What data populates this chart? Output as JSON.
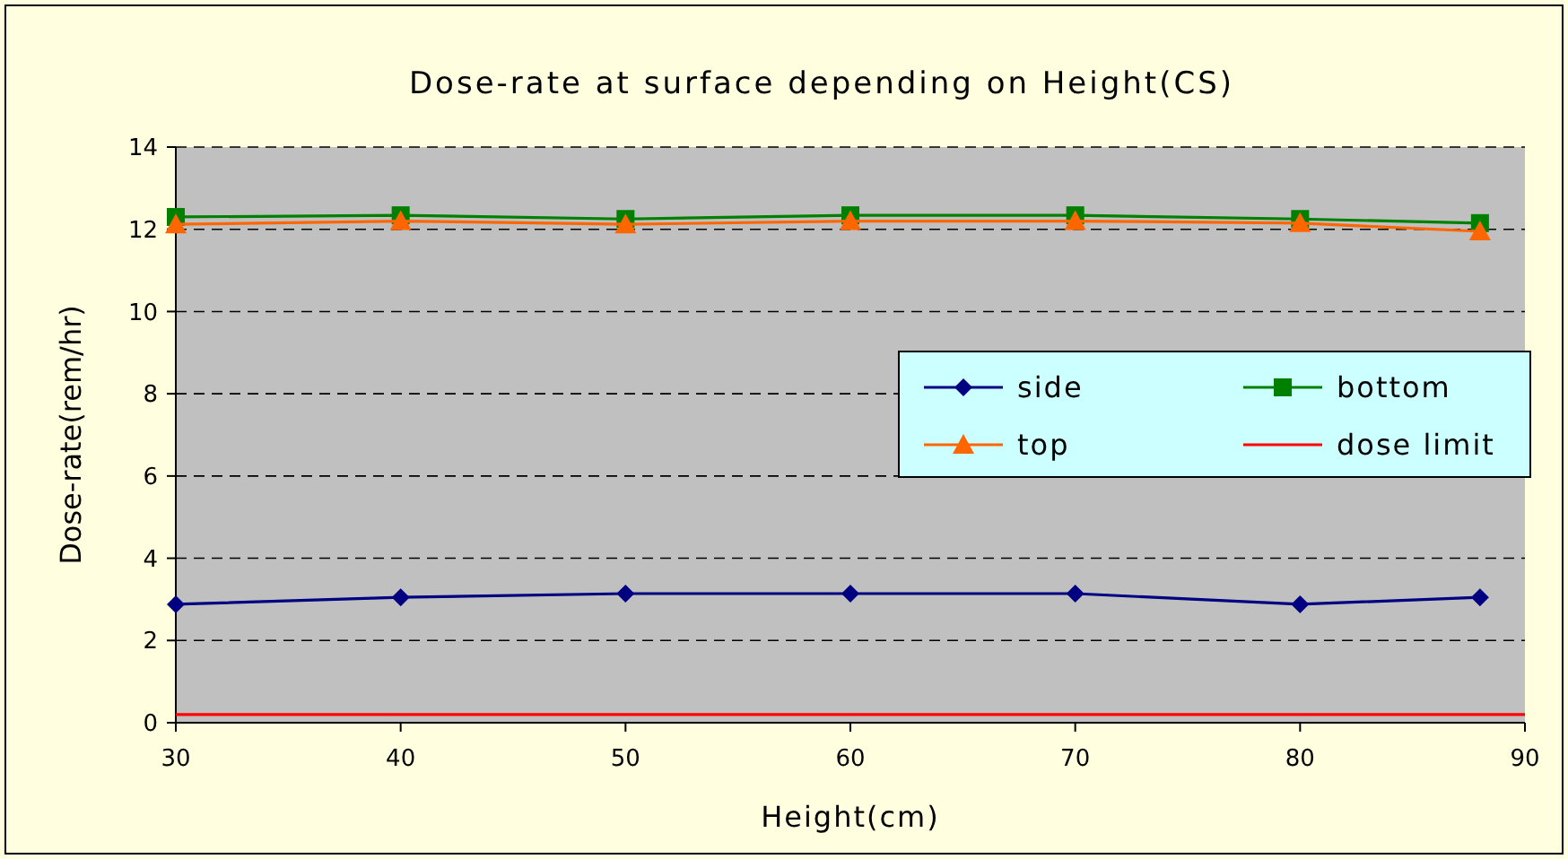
{
  "chart_data": {
    "type": "line",
    "title": "Dose-rate at surface depending on Height(CS)",
    "xlabel": "Height(cm)",
    "ylabel": "Dose-rate(rem/hr)",
    "x": [
      30,
      40,
      50,
      60,
      70,
      80,
      88
    ],
    "series": [
      {
        "name": "side",
        "color": "#000080",
        "marker": "diamond",
        "values": [
          2.88,
          3.05,
          3.14,
          3.14,
          3.14,
          2.88,
          3.05
        ]
      },
      {
        "name": "bottom",
        "color": "#008000",
        "marker": "square",
        "values": [
          12.3,
          12.34,
          12.25,
          12.34,
          12.34,
          12.25,
          12.15
        ]
      },
      {
        "name": "top",
        "color": "#ff6600",
        "marker": "triangle",
        "values": [
          12.12,
          12.2,
          12.12,
          12.2,
          12.2,
          12.15,
          11.95
        ]
      },
      {
        "name": "dose limit",
        "color": "#ff0000",
        "marker": "none",
        "x": [
          30,
          90
        ],
        "values": [
          0.2,
          0.2
        ]
      }
    ],
    "xlim": [
      30,
      90
    ],
    "xticks": [
      30,
      40,
      50,
      60,
      70,
      80,
      90
    ],
    "ylim": [
      0,
      14
    ],
    "yticks": [
      0,
      2,
      4,
      6,
      8,
      10,
      12,
      14
    ],
    "grid": "y",
    "legend": "right"
  }
}
